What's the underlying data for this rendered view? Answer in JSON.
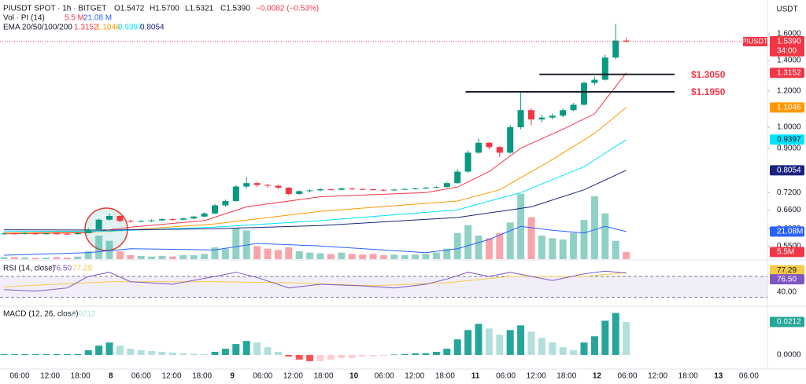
{
  "chart_data": {
    "type": "candlestick",
    "log_scale": true,
    "header": {
      "symbol": "PIUSDT SPOT · 1h · BITGET",
      "open": "O1.5472",
      "high": "H1.5700",
      "low": "L1.5321",
      "close": "C1.5390",
      "change": "−0.0082 (−0.53%)"
    },
    "currency": "USDT",
    "symbol_tag": "PIUSDT",
    "up_color": "#089981",
    "down_color": "#f23645",
    "ylim": [
      0.515,
      1.897
    ],
    "yticks": [
      {
        "value": 1.6,
        "label": "1.6000"
      },
      {
        "value": 1.4,
        "label": "1.4000"
      },
      {
        "value": 1.2,
        "label": "1.2000"
      },
      {
        "value": 1.0,
        "label": "1.0000"
      },
      {
        "value": 0.9,
        "label": "0.9000"
      },
      {
        "value": 0.72,
        "label": "0.7200"
      },
      {
        "value": 0.66,
        "label": "0.6600"
      },
      {
        "value": 0.6,
        "label": "0.6000"
      },
      {
        "value": 0.55,
        "label": "0.5500"
      }
    ],
    "x": [
      "06:00",
      "12:00",
      "18:00",
      "8",
      "06:00",
      "12:00",
      "18:00",
      "9",
      "06:00",
      "12:00",
      "18:00",
      "10",
      "06:00",
      "12:00",
      "18:00",
      "11",
      "06:00",
      "12:00",
      "18:00",
      "12",
      "06:00",
      "12:00",
      "18:00",
      "13",
      "06:00"
    ],
    "candles": [
      [
        0.585,
        0.589,
        0.583,
        0.586
      ],
      [
        0.586,
        0.588,
        0.583,
        0.585
      ],
      [
        0.585,
        0.589,
        0.583,
        0.587
      ],
      [
        0.587,
        0.588,
        0.582,
        0.584
      ],
      [
        0.584,
        0.588,
        0.583,
        0.586
      ],
      [
        0.586,
        0.588,
        0.583,
        0.585
      ],
      [
        0.585,
        0.587,
        0.582,
        0.584
      ],
      [
        0.584,
        0.59,
        0.583,
        0.587
      ],
      [
        0.587,
        0.602,
        0.586,
        0.598
      ],
      [
        0.598,
        0.632,
        0.596,
        0.628
      ],
      [
        0.628,
        0.648,
        0.625,
        0.64
      ],
      [
        0.64,
        0.642,
        0.62,
        0.624
      ],
      [
        0.624,
        0.628,
        0.619,
        0.622
      ],
      [
        0.622,
        0.627,
        0.62,
        0.624
      ],
      [
        0.624,
        0.629,
        0.621,
        0.626
      ],
      [
        0.626,
        0.633,
        0.624,
        0.63
      ],
      [
        0.63,
        0.632,
        0.625,
        0.628
      ],
      [
        0.628,
        0.635,
        0.626,
        0.632
      ],
      [
        0.632,
        0.641,
        0.63,
        0.638
      ],
      [
        0.638,
        0.652,
        0.636,
        0.648
      ],
      [
        0.648,
        0.68,
        0.645,
        0.675
      ],
      [
        0.675,
        0.695,
        0.67,
        0.69
      ],
      [
        0.69,
        0.748,
        0.688,
        0.742
      ],
      [
        0.742,
        0.778,
        0.735,
        0.755
      ],
      [
        0.755,
        0.76,
        0.74,
        0.748
      ],
      [
        0.748,
        0.752,
        0.738,
        0.745
      ],
      [
        0.745,
        0.75,
        0.732,
        0.738
      ],
      [
        0.738,
        0.74,
        0.71,
        0.715
      ],
      [
        0.715,
        0.728,
        0.712,
        0.725
      ],
      [
        0.725,
        0.731,
        0.72,
        0.728
      ],
      [
        0.728,
        0.736,
        0.724,
        0.732
      ],
      [
        0.732,
        0.734,
        0.726,
        0.73
      ],
      [
        0.73,
        0.738,
        0.728,
        0.735
      ],
      [
        0.735,
        0.737,
        0.729,
        0.733
      ],
      [
        0.733,
        0.735,
        0.729,
        0.732
      ],
      [
        0.732,
        0.734,
        0.727,
        0.73
      ],
      [
        0.73,
        0.732,
        0.725,
        0.728
      ],
      [
        0.728,
        0.734,
        0.726,
        0.731
      ],
      [
        0.731,
        0.736,
        0.729,
        0.733
      ],
      [
        0.733,
        0.738,
        0.731,
        0.735
      ],
      [
        0.735,
        0.741,
        0.733,
        0.738
      ],
      [
        0.738,
        0.744,
        0.736,
        0.74
      ],
      [
        0.74,
        0.76,
        0.738,
        0.755
      ],
      [
        0.755,
        0.81,
        0.752,
        0.8
      ],
      [
        0.8,
        0.89,
        0.795,
        0.88
      ],
      [
        0.88,
        0.945,
        0.875,
        0.925
      ],
      [
        0.925,
        0.93,
        0.895,
        0.905
      ],
      [
        0.905,
        0.91,
        0.86,
        0.88
      ],
      [
        0.88,
        1.01,
        0.875,
        1.0
      ],
      [
        1.0,
        1.19,
        0.99,
        1.09
      ],
      [
        1.09,
        1.1,
        1.01,
        1.04
      ],
      [
        1.04,
        1.065,
        1.025,
        1.05
      ],
      [
        1.05,
        1.072,
        1.04,
        1.06
      ],
      [
        1.06,
        1.098,
        1.052,
        1.09
      ],
      [
        1.09,
        1.13,
        1.085,
        1.12
      ],
      [
        1.12,
        1.26,
        1.115,
        1.25
      ],
      [
        1.25,
        1.29,
        1.235,
        1.27
      ],
      [
        1.27,
        1.44,
        1.265,
        1.42
      ],
      [
        1.42,
        1.68,
        1.41,
        1.5472
      ],
      [
        1.5472,
        1.57,
        1.5321,
        1.539
      ]
    ],
    "last_price": {
      "value": 1.539,
      "label": "1.5390",
      "countdown": "34:00"
    },
    "levels": [
      {
        "value": 1.305,
        "label": "$1.3050",
        "from": 51
      },
      {
        "value": 1.195,
        "label": "$1.1950",
        "from": 44
      }
    ],
    "ema_title": "EMA 20/50/100/200",
    "emas": [
      {
        "color": "#f23645",
        "label": "1.3152",
        "x": [
          0,
          8,
          12,
          19,
          23,
          30,
          40,
          43,
          46,
          49,
          53,
          56,
          59
        ],
        "values": [
          0.585,
          0.588,
          0.605,
          0.625,
          0.67,
          0.705,
          0.72,
          0.74,
          0.8,
          0.9,
          0.99,
          1.07,
          1.3152
        ]
      },
      {
        "color": "#ff9800",
        "label": "1.1046",
        "x": [
          0,
          10,
          20,
          30,
          43,
          47,
          52,
          56,
          59
        ],
        "values": [
          0.588,
          0.592,
          0.615,
          0.655,
          0.69,
          0.73,
          0.85,
          0.97,
          1.1046
        ]
      },
      {
        "color": "#00e5ff",
        "label": "0.9397",
        "x": [
          0,
          10,
          20,
          30,
          43,
          49,
          55,
          59
        ],
        "values": [
          0.592,
          0.593,
          0.605,
          0.625,
          0.66,
          0.72,
          0.82,
          0.9397
        ]
      },
      {
        "color": "#1a237e",
        "label": "0.8054",
        "x": [
          0,
          10,
          20,
          30,
          43,
          50,
          55,
          59
        ],
        "values": [
          0.597,
          0.596,
          0.6,
          0.61,
          0.635,
          0.67,
          0.73,
          0.8054
        ]
      }
    ],
    "volume": {
      "title": "Vol · PI (14)",
      "label": "5.5 M",
      "axis_label": "5.5M",
      "ma_label": "21.08 M",
      "ma_axis_label": "21.08M",
      "ma_color": "#2962ff",
      "ylim": [
        0,
        60
      ],
      "values": [
        1.5,
        1.5,
        1.2,
        1,
        1.2,
        1.5,
        1.2,
        2,
        6,
        18,
        14,
        6,
        3,
        2.5,
        2,
        2.5,
        2,
        3,
        3,
        4,
        9,
        8,
        24,
        22,
        10,
        8,
        7,
        9,
        6,
        5,
        4.5,
        4,
        5,
        4,
        3.5,
        4,
        3,
        3.5,
        3,
        3.5,
        4,
        5,
        8,
        20,
        26,
        18,
        16,
        20,
        28,
        50,
        32,
        18,
        16,
        15,
        20,
        30,
        48,
        35,
        14,
        5.5
      ],
      "ma_x": [
        0,
        8,
        12,
        20,
        24,
        30,
        40,
        43,
        46,
        49,
        52,
        55,
        57,
        59
      ],
      "ma_values": [
        3,
        5,
        8,
        7,
        12,
        10,
        5,
        8,
        15,
        25,
        22,
        20,
        25,
        21.08
      ]
    },
    "rsi": {
      "title": "RSI (14, close)",
      "value_label": "76.50",
      "ma_label": "77.29",
      "color": "#7e57c2",
      "ma_color": "#f7c948",
      "ylim": [
        16,
        100
      ],
      "band": [
        30,
        70
      ],
      "yticks": [
        {
          "value": 40,
          "label": "40.00"
        }
      ],
      "x": [
        0,
        3,
        6,
        8,
        10,
        12,
        16,
        20,
        22,
        24,
        27,
        30,
        34,
        37,
        40,
        42,
        44,
        46,
        48,
        50,
        52,
        55,
        57,
        59
      ],
      "values": [
        45,
        42,
        48,
        70,
        78,
        60,
        55,
        70,
        78,
        68,
        48,
        55,
        52,
        48,
        55,
        65,
        78,
        70,
        78,
        70,
        62,
        75,
        80,
        76.5
      ],
      "ma_x": [
        0,
        10,
        20,
        27,
        35,
        42,
        48,
        55,
        59
      ],
      "ma_values": [
        50,
        60,
        60,
        58,
        52,
        58,
        70,
        70,
        77.29
      ]
    },
    "macd": {
      "title": "MACD (12, 26, close)",
      "value_label": "0.0212",
      "ylim": [
        -0.0091,
        0.0303
      ],
      "yticks": [
        {
          "value": 0,
          "label": "0.0000"
        }
      ],
      "values": [
        0.0005,
        0.0005,
        0.0005,
        0.0005,
        0.0005,
        0.0005,
        0.0005,
        0.0005,
        0.003,
        0.006,
        0.008,
        0.006,
        0.004,
        0.003,
        0.0025,
        0.002,
        0.0015,
        0.001,
        0.0008,
        0.0005,
        0.002,
        0.004,
        0.007,
        0.009,
        0.008,
        0.005,
        0.002,
        -0.001,
        -0.003,
        -0.004,
        -0.004,
        -0.003,
        -0.002,
        -0.002,
        -0.001,
        -0.001,
        -0.0005,
        0.0003,
        0.0005,
        0.001,
        0.001,
        0.002,
        0.004,
        0.01,
        0.016,
        0.02,
        0.017,
        0.013,
        0.016,
        0.019,
        0.015,
        0.011,
        0.008,
        0.005,
        0.003,
        0.008,
        0.012,
        0.022,
        0.027,
        0.0212
      ]
    }
  }
}
